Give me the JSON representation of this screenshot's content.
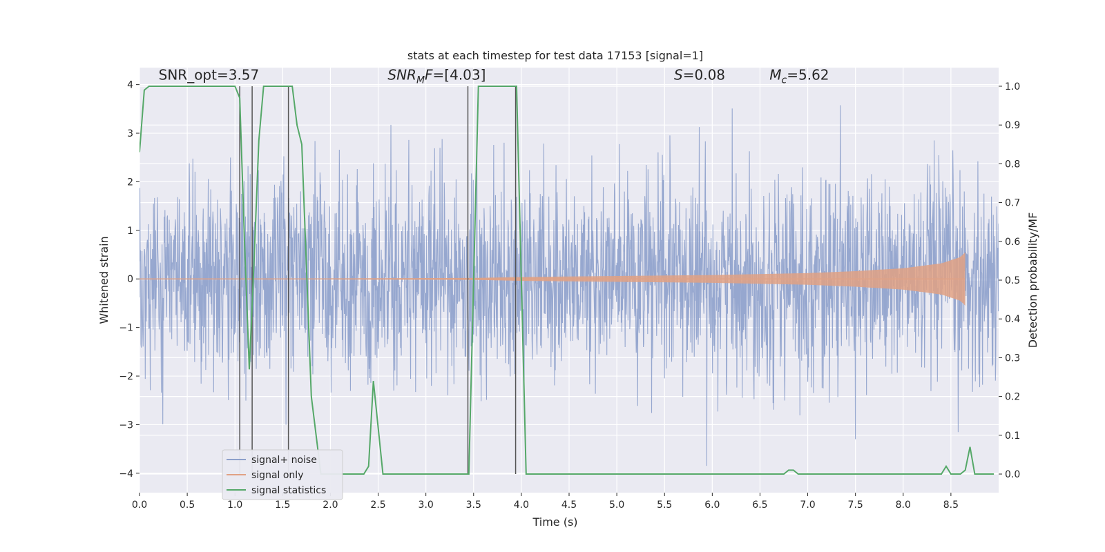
{
  "chart_data": {
    "type": "line",
    "title": "stats at each timestep for test data 17153 [signal=1]",
    "xlabel": "Time (s)",
    "ylabel": "Whitened strain",
    "ylabel_right": "Detection probability/MF",
    "xlim": [
      0.0,
      9.0
    ],
    "ylim": [
      -4.4,
      4.35
    ],
    "ylim_right": [
      -0.048,
      1.048
    ],
    "xticks": [
      0.0,
      0.5,
      1.0,
      1.5,
      2.0,
      2.5,
      3.0,
      3.5,
      4.0,
      4.5,
      5.0,
      5.5,
      6.0,
      6.5,
      7.0,
      7.5,
      8.0,
      8.5
    ],
    "xtick_labels": [
      "0.0",
      "0.5",
      "1.0",
      "1.5",
      "2.0",
      "2.5",
      "3.0",
      "3.5",
      "4.0",
      "4.5",
      "5.0",
      "5.5",
      "6.0",
      "6.5",
      "7.0",
      "7.5",
      "8.0",
      "8.5"
    ],
    "yticks": [
      -4,
      -3,
      -2,
      -1,
      0,
      1,
      2,
      3,
      4
    ],
    "ytick_labels": [
      "−4",
      "−3",
      "−2",
      "−1",
      "0",
      "1",
      "2",
      "3",
      "4"
    ],
    "yticks_right": [
      0.0,
      0.1,
      0.2,
      0.3,
      0.4,
      0.5,
      0.6,
      0.7,
      0.8,
      0.9,
      1.0
    ],
    "ytick_right_labels": [
      "0.0",
      "0.1",
      "0.2",
      "0.3",
      "0.4",
      "0.5",
      "0.6",
      "0.7",
      "0.8",
      "0.9",
      "1.0"
    ],
    "grid": true,
    "annotations": [
      {
        "id": "snr-opt",
        "text": "SNR_opt=3.57",
        "x": 0.2,
        "y": 4.1
      },
      {
        "id": "snr-mf",
        "text": "[4.03]",
        "prefix": "SNR",
        "sub": "M",
        "mid": "F=",
        "x": 2.6,
        "y": 4.1
      },
      {
        "id": "s-val",
        "text": "=0.08",
        "prefix": "S",
        "x": 5.6,
        "y": 4.1
      },
      {
        "id": "mc-val",
        "text": "=5.62",
        "prefix": "M",
        "sub": "c",
        "x": 6.6,
        "y": 4.1
      }
    ],
    "legend": {
      "placement": "lower-left",
      "entries": [
        {
          "label": "signal+ noise",
          "color": "#8da0cb"
        },
        {
          "label": "signal only",
          "color": "#e1a184"
        },
        {
          "label": "signal statistics",
          "color": "#55a868"
        }
      ]
    },
    "series": [
      {
        "name": "signal+ noise",
        "axis": "left",
        "color": "#8da0cb",
        "style": "dense-noise",
        "x_range": [
          0.0,
          9.0
        ],
        "typical_abs_amplitude": 2.0,
        "peak_amplitude": 4.0
      },
      {
        "name": "signal only",
        "axis": "left",
        "color": "#e1a184",
        "style": "chirp-envelope",
        "x_range": [
          0.0,
          8.65
        ],
        "envelope": [
          [
            0.0,
            0.0
          ],
          [
            3.5,
            0.02
          ],
          [
            4.0,
            0.04
          ],
          [
            5.0,
            0.06
          ],
          [
            6.0,
            0.08
          ],
          [
            7.0,
            0.12
          ],
          [
            7.5,
            0.16
          ],
          [
            8.0,
            0.22
          ],
          [
            8.4,
            0.32
          ],
          [
            8.6,
            0.45
          ],
          [
            8.65,
            0.55
          ]
        ]
      },
      {
        "name": "signal statistics",
        "axis": "right",
        "color": "#55a868",
        "x": [
          0.0,
          0.05,
          0.1,
          0.2,
          0.3,
          0.5,
          0.7,
          0.9,
          1.0,
          1.05,
          1.1,
          1.15,
          1.2,
          1.25,
          1.3,
          1.35,
          1.4,
          1.5,
          1.55,
          1.6,
          1.65,
          1.7,
          1.8,
          1.9,
          2.0,
          2.1,
          2.2,
          2.3,
          2.35,
          2.4,
          2.45,
          2.5,
          2.55,
          2.6,
          2.7,
          2.8,
          3.0,
          3.2,
          3.4,
          3.45,
          3.5,
          3.55,
          3.6,
          3.7,
          3.8,
          3.9,
          3.95,
          4.0,
          4.05,
          4.1,
          4.2,
          4.3,
          4.5,
          5.0,
          5.5,
          6.0,
          6.5,
          6.7,
          6.75,
          6.8,
          6.85,
          6.9,
          6.95,
          7.0,
          7.5,
          8.0,
          8.3,
          8.35,
          8.4,
          8.45,
          8.5,
          8.55,
          8.6,
          8.65,
          8.7,
          8.75,
          8.8,
          8.85,
          8.95
        ],
        "values": [
          0.83,
          0.99,
          1.0,
          1.0,
          1.0,
          1.0,
          1.0,
          1.0,
          1.0,
          0.97,
          0.6,
          0.27,
          0.55,
          0.86,
          1.0,
          1.0,
          1.0,
          1.0,
          1.0,
          1.0,
          0.9,
          0.85,
          0.2,
          0.0,
          0.0,
          0.0,
          0.0,
          0.0,
          0.0,
          0.02,
          0.24,
          0.12,
          0.0,
          0.0,
          0.0,
          0.0,
          0.0,
          0.0,
          0.0,
          0.0,
          0.5,
          1.0,
          1.0,
          1.0,
          1.0,
          1.0,
          1.0,
          0.5,
          0.0,
          0.0,
          0.0,
          0.0,
          0.0,
          0.0,
          0.0,
          0.0,
          0.0,
          0.0,
          0.0,
          0.01,
          0.01,
          0.0,
          0.0,
          0.0,
          0.0,
          0.0,
          0.0,
          0.0,
          0.0,
          0.02,
          0.0,
          0.0,
          0.0,
          0.01,
          0.07,
          0.0,
          0.0,
          0.0,
          0.0
        ],
        "vertical_markers": [
          1.05,
          1.18,
          1.56,
          3.44,
          3.94
        ]
      }
    ]
  }
}
